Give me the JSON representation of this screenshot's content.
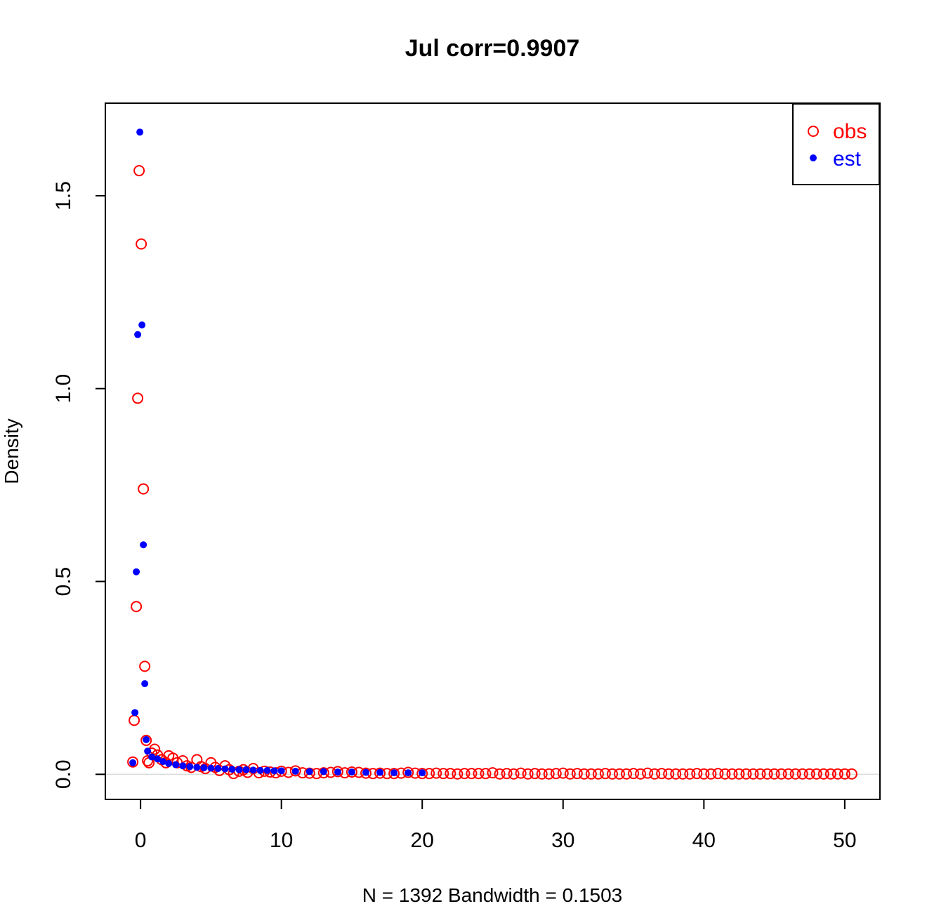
{
  "chart_data": {
    "type": "scatter",
    "title": "Jul corr=0.9907",
    "xlabel": "N = 1392   Bandwidth = 0.1503",
    "ylabel": "Density",
    "xlim": [
      -2.5,
      52.5
    ],
    "ylim": [
      -0.065,
      1.74
    ],
    "x_ticks": [
      0,
      10,
      20,
      30,
      40,
      50
    ],
    "x_tick_labels": [
      "0",
      "10",
      "20",
      "30",
      "40",
      "50"
    ],
    "y_ticks": [
      0.0,
      0.5,
      1.0,
      1.5
    ],
    "y_tick_labels": [
      "0.0",
      "0.5",
      "1.0",
      "1.5"
    ],
    "baseline": 0,
    "legend": {
      "position": "top-right"
    },
    "series": [
      {
        "name": "obs",
        "marker": "open-circle",
        "color": "#ff0000",
        "points": [
          [
            -0.55,
            0.032
          ],
          [
            -0.45,
            0.14
          ],
          [
            -0.3,
            0.435
          ],
          [
            -0.2,
            0.975
          ],
          [
            -0.1,
            1.565
          ],
          [
            0.05,
            1.375
          ],
          [
            0.2,
            0.74
          ],
          [
            0.3,
            0.28
          ],
          [
            0.4,
            0.088
          ],
          [
            0.5,
            0.035
          ],
          [
            0.6,
            0.03
          ],
          [
            0.8,
            0.055
          ],
          [
            1.0,
            0.065
          ],
          [
            1.2,
            0.05
          ],
          [
            1.5,
            0.038
          ],
          [
            1.8,
            0.03
          ],
          [
            2.0,
            0.048
          ],
          [
            2.3,
            0.042
          ],
          [
            2.6,
            0.03
          ],
          [
            3.0,
            0.035
          ],
          [
            3.3,
            0.022
          ],
          [
            3.6,
            0.018
          ],
          [
            4.0,
            0.038
          ],
          [
            4.3,
            0.02
          ],
          [
            4.6,
            0.015
          ],
          [
            5.0,
            0.03
          ],
          [
            5.3,
            0.018
          ],
          [
            5.6,
            0.01
          ],
          [
            6.0,
            0.022
          ],
          [
            6.3,
            0.012
          ],
          [
            6.6,
            0.002
          ],
          [
            7.0,
            0.008
          ],
          [
            7.3,
            0.012
          ],
          [
            7.6,
            0.005
          ],
          [
            8.0,
            0.015
          ],
          [
            8.4,
            0.004
          ],
          [
            8.8,
            0.008
          ],
          [
            9.2,
            0.006
          ],
          [
            9.6,
            0.004
          ],
          [
            10.0,
            0.008
          ],
          [
            10.5,
            0.005
          ],
          [
            11.0,
            0.009
          ],
          [
            11.5,
            0.004
          ],
          [
            12.0,
            0.003
          ],
          [
            12.5,
            0.002
          ],
          [
            13.0,
            0.004
          ],
          [
            13.5,
            0.005
          ],
          [
            14.0,
            0.007
          ],
          [
            14.5,
            0.004
          ],
          [
            15.0,
            0.006
          ],
          [
            15.5,
            0.005
          ],
          [
            16.0,
            0.003
          ],
          [
            16.5,
            0.002
          ],
          [
            17.0,
            0.003
          ],
          [
            17.5,
            0.002
          ],
          [
            18.0,
            0.002
          ],
          [
            18.5,
            0.003
          ],
          [
            19.0,
            0.005
          ],
          [
            19.5,
            0.003
          ],
          [
            20.0,
            0.002
          ],
          [
            20.5,
            0.002
          ],
          [
            21.0,
            0.003
          ],
          [
            21.5,
            0.002
          ],
          [
            22.0,
            0.002
          ],
          [
            22.5,
            0.001
          ],
          [
            23.0,
            0.002
          ],
          [
            23.5,
            0.002
          ],
          [
            24.0,
            0.002
          ],
          [
            24.5,
            0.002
          ],
          [
            25.0,
            0.004
          ],
          [
            25.5,
            0.001
          ],
          [
            26.0,
            0.002
          ],
          [
            26.5,
            0.001
          ],
          [
            27.0,
            0.003
          ],
          [
            27.5,
            0.001
          ],
          [
            28.0,
            0.002
          ],
          [
            28.5,
            0.001
          ],
          [
            29.0,
            0.001
          ],
          [
            29.5,
            0.002
          ],
          [
            30.0,
            0.003
          ],
          [
            30.5,
            0.001
          ],
          [
            31.0,
            0.002
          ],
          [
            31.5,
            0.001
          ],
          [
            32.0,
            0.001
          ],
          [
            32.5,
            0.001
          ],
          [
            33.0,
            0.002
          ],
          [
            33.5,
            0.001
          ],
          [
            34.0,
            0.001
          ],
          [
            34.5,
            0.001
          ],
          [
            35.0,
            0.002
          ],
          [
            35.5,
            0.001
          ],
          [
            36.0,
            0.003
          ],
          [
            36.5,
            0.001
          ],
          [
            37.0,
            0.002
          ],
          [
            37.5,
            0.001
          ],
          [
            38.0,
            0.001
          ],
          [
            38.5,
            0.001
          ],
          [
            39.0,
            0.001
          ],
          [
            39.5,
            0.002
          ],
          [
            40.0,
            0.001
          ],
          [
            40.5,
            0.001
          ],
          [
            41.0,
            0.002
          ],
          [
            41.5,
            0.001
          ],
          [
            42.0,
            0.001
          ],
          [
            42.5,
            0.001
          ],
          [
            43.0,
            0.001
          ],
          [
            43.5,
            0.001
          ],
          [
            44.0,
            0.001
          ],
          [
            44.5,
            0.001
          ],
          [
            45.0,
            0.001
          ],
          [
            45.5,
            0.001
          ],
          [
            46.0,
            0.001
          ],
          [
            46.5,
            0.001
          ],
          [
            47.0,
            0.001
          ],
          [
            47.5,
            0.001
          ],
          [
            48.0,
            0.001
          ],
          [
            48.5,
            0.001
          ],
          [
            49.0,
            0.001
          ],
          [
            49.5,
            0.001
          ],
          [
            50.0,
            0.001
          ],
          [
            50.5,
            0.001
          ]
        ]
      },
      {
        "name": "est",
        "marker": "filled-dot",
        "color": "#0000ff",
        "points": [
          [
            -0.55,
            0.03
          ],
          [
            -0.4,
            0.16
          ],
          [
            -0.3,
            0.525
          ],
          [
            -0.2,
            1.14
          ],
          [
            -0.05,
            1.665
          ],
          [
            0.1,
            1.165
          ],
          [
            0.2,
            0.595
          ],
          [
            0.3,
            0.235
          ],
          [
            0.4,
            0.09
          ],
          [
            0.5,
            0.06
          ],
          [
            0.8,
            0.045
          ],
          [
            1.2,
            0.04
          ],
          [
            1.6,
            0.033
          ],
          [
            2.0,
            0.028
          ],
          [
            2.5,
            0.025
          ],
          [
            3.0,
            0.022
          ],
          [
            3.5,
            0.02
          ],
          [
            4.0,
            0.018
          ],
          [
            4.5,
            0.017
          ],
          [
            5.0,
            0.016
          ],
          [
            5.5,
            0.015
          ],
          [
            6.0,
            0.014
          ],
          [
            6.5,
            0.013
          ],
          [
            7.0,
            0.012
          ],
          [
            7.5,
            0.012
          ],
          [
            8.0,
            0.011
          ],
          [
            8.5,
            0.01
          ],
          [
            9.0,
            0.01
          ],
          [
            9.5,
            0.009
          ],
          [
            10.0,
            0.009
          ],
          [
            11.0,
            0.008
          ],
          [
            12.0,
            0.007
          ],
          [
            13.0,
            0.007
          ],
          [
            14.0,
            0.006
          ],
          [
            15.0,
            0.006
          ],
          [
            16.0,
            0.005
          ],
          [
            17.0,
            0.005
          ],
          [
            18.0,
            0.004
          ],
          [
            19.0,
            0.004
          ],
          [
            20.0,
            0.004
          ]
        ]
      }
    ]
  }
}
